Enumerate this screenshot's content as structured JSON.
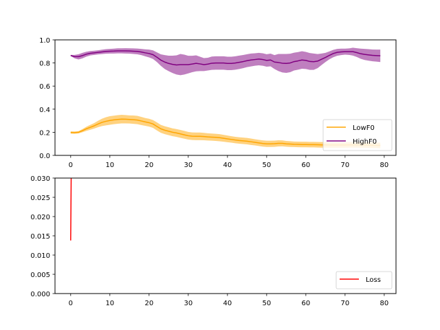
{
  "chart_data": [
    {
      "type": "line",
      "xlim": [
        -4,
        83
      ],
      "ylim": [
        0,
        1
      ],
      "xticks": [
        0,
        10,
        20,
        30,
        40,
        50,
        60,
        70,
        80
      ],
      "xtick_labels": [
        "0",
        "10",
        "20",
        "30",
        "40",
        "50",
        "60",
        "70",
        "80"
      ],
      "yticks": [
        0.0,
        0.2,
        0.4,
        0.6,
        0.8,
        1.0
      ],
      "ytick_labels": [
        "0.0",
        "0.2",
        "0.4",
        "0.6",
        "0.8",
        "1.0"
      ],
      "legend_position": "lower-right",
      "series": [
        {
          "name": "LowF0",
          "color": "#ffa500",
          "band_opacity": 0.5,
          "x": [
            0,
            1,
            2,
            3,
            4,
            5,
            6,
            7,
            8,
            9,
            10,
            11,
            12,
            13,
            14,
            15,
            16,
            17,
            18,
            19,
            20,
            21,
            22,
            23,
            24,
            25,
            26,
            27,
            28,
            29,
            30,
            31,
            32,
            33,
            34,
            35,
            36,
            37,
            38,
            39,
            40,
            41,
            42,
            43,
            44,
            45,
            46,
            47,
            48,
            49,
            50,
            51,
            52,
            53,
            54,
            55,
            56,
            57,
            58,
            59,
            60,
            61,
            62,
            63,
            64,
            65,
            66,
            67,
            68,
            69,
            70,
            71,
            72,
            73,
            74,
            75,
            76,
            77,
            78,
            79
          ],
          "values": [
            0.198,
            0.197,
            0.2,
            0.214,
            0.23,
            0.243,
            0.256,
            0.272,
            0.286,
            0.295,
            0.302,
            0.307,
            0.311,
            0.314,
            0.313,
            0.311,
            0.309,
            0.306,
            0.298,
            0.29,
            0.283,
            0.272,
            0.251,
            0.23,
            0.218,
            0.209,
            0.2,
            0.194,
            0.186,
            0.178,
            0.17,
            0.166,
            0.165,
            0.165,
            0.163,
            0.16,
            0.158,
            0.156,
            0.153,
            0.148,
            0.143,
            0.138,
            0.133,
            0.129,
            0.126,
            0.123,
            0.118,
            0.113,
            0.108,
            0.103,
            0.1,
            0.1,
            0.101,
            0.104,
            0.104,
            0.1,
            0.098,
            0.096,
            0.095,
            0.094,
            0.094,
            0.093,
            0.093,
            0.092,
            0.091,
            0.091,
            0.09,
            0.09,
            0.09,
            0.09,
            0.09,
            0.091,
            0.091,
            0.091,
            0.09,
            0.09,
            0.089,
            0.088,
            0.087,
            0.086
          ],
          "lower": [
            0.188,
            0.187,
            0.19,
            0.2,
            0.212,
            0.222,
            0.232,
            0.244,
            0.254,
            0.26,
            0.265,
            0.27,
            0.274,
            0.277,
            0.277,
            0.276,
            0.273,
            0.27,
            0.263,
            0.256,
            0.249,
            0.238,
            0.216,
            0.196,
            0.184,
            0.175,
            0.166,
            0.16,
            0.152,
            0.144,
            0.137,
            0.133,
            0.132,
            0.132,
            0.131,
            0.129,
            0.127,
            0.125,
            0.122,
            0.118,
            0.114,
            0.11,
            0.105,
            0.101,
            0.098,
            0.095,
            0.09,
            0.086,
            0.081,
            0.076,
            0.073,
            0.073,
            0.074,
            0.077,
            0.078,
            0.075,
            0.073,
            0.072,
            0.071,
            0.07,
            0.07,
            0.069,
            0.069,
            0.068,
            0.067,
            0.067,
            0.066,
            0.066,
            0.066,
            0.066,
            0.066,
            0.067,
            0.067,
            0.067,
            0.066,
            0.066,
            0.065,
            0.064,
            0.063,
            0.062
          ],
          "upper": [
            0.208,
            0.207,
            0.21,
            0.228,
            0.248,
            0.264,
            0.28,
            0.3,
            0.318,
            0.33,
            0.339,
            0.344,
            0.348,
            0.351,
            0.349,
            0.346,
            0.345,
            0.342,
            0.333,
            0.324,
            0.317,
            0.306,
            0.286,
            0.264,
            0.252,
            0.243,
            0.234,
            0.228,
            0.22,
            0.212,
            0.203,
            0.199,
            0.198,
            0.198,
            0.195,
            0.191,
            0.189,
            0.187,
            0.184,
            0.178,
            0.172,
            0.166,
            0.161,
            0.157,
            0.154,
            0.151,
            0.146,
            0.14,
            0.135,
            0.13,
            0.127,
            0.127,
            0.128,
            0.131,
            0.13,
            0.125,
            0.123,
            0.12,
            0.119,
            0.118,
            0.118,
            0.117,
            0.117,
            0.116,
            0.115,
            0.115,
            0.114,
            0.114,
            0.114,
            0.114,
            0.114,
            0.115,
            0.115,
            0.115,
            0.114,
            0.114,
            0.113,
            0.112,
            0.111,
            0.11
          ]
        },
        {
          "name": "HighF0",
          "color": "#800080",
          "band_opacity": 0.5,
          "x": [
            0,
            1,
            2,
            3,
            4,
            5,
            6,
            7,
            8,
            9,
            10,
            11,
            12,
            13,
            14,
            15,
            16,
            17,
            18,
            19,
            20,
            21,
            22,
            23,
            24,
            25,
            26,
            27,
            28,
            29,
            30,
            31,
            32,
            33,
            34,
            35,
            36,
            37,
            38,
            39,
            40,
            41,
            42,
            43,
            44,
            45,
            46,
            47,
            48,
            49,
            50,
            51,
            52,
            53,
            54,
            55,
            56,
            57,
            58,
            59,
            60,
            61,
            62,
            63,
            64,
            65,
            66,
            67,
            68,
            69,
            70,
            71,
            72,
            73,
            74,
            75,
            76,
            77,
            78,
            79
          ],
          "values": [
            0.865,
            0.855,
            0.855,
            0.864,
            0.876,
            0.884,
            0.888,
            0.892,
            0.896,
            0.9,
            0.902,
            0.903,
            0.905,
            0.905,
            0.905,
            0.904,
            0.902,
            0.9,
            0.895,
            0.888,
            0.882,
            0.872,
            0.85,
            0.825,
            0.808,
            0.796,
            0.788,
            0.783,
            0.786,
            0.786,
            0.786,
            0.791,
            0.797,
            0.792,
            0.786,
            0.79,
            0.798,
            0.8,
            0.8,
            0.8,
            0.796,
            0.796,
            0.8,
            0.806,
            0.812,
            0.82,
            0.826,
            0.83,
            0.834,
            0.83,
            0.822,
            0.826,
            0.808,
            0.804,
            0.798,
            0.796,
            0.8,
            0.812,
            0.818,
            0.826,
            0.822,
            0.813,
            0.811,
            0.816,
            0.832,
            0.848,
            0.866,
            0.882,
            0.892,
            0.896,
            0.898,
            0.898,
            0.898,
            0.89,
            0.88,
            0.874,
            0.87,
            0.866,
            0.864,
            0.862
          ],
          "lower": [
            0.86,
            0.84,
            0.83,
            0.84,
            0.855,
            0.865,
            0.87,
            0.874,
            0.877,
            0.88,
            0.882,
            0.882,
            0.883,
            0.883,
            0.882,
            0.881,
            0.878,
            0.875,
            0.868,
            0.858,
            0.848,
            0.835,
            0.808,
            0.775,
            0.748,
            0.729,
            0.713,
            0.7,
            0.694,
            0.7,
            0.71,
            0.72,
            0.728,
            0.73,
            0.73,
            0.735,
            0.74,
            0.742,
            0.742,
            0.742,
            0.738,
            0.738,
            0.742,
            0.748,
            0.755,
            0.764,
            0.77,
            0.776,
            0.78,
            0.776,
            0.768,
            0.771,
            0.748,
            0.73,
            0.718,
            0.714,
            0.72,
            0.735,
            0.742,
            0.75,
            0.748,
            0.74,
            0.74,
            0.755,
            0.782,
            0.808,
            0.832,
            0.85,
            0.862,
            0.868,
            0.872,
            0.87,
            0.864,
            0.852,
            0.836,
            0.826,
            0.82,
            0.815,
            0.812,
            0.808
          ],
          "upper": [
            0.87,
            0.87,
            0.876,
            0.888,
            0.897,
            0.903,
            0.906,
            0.91,
            0.915,
            0.92,
            0.922,
            0.924,
            0.927,
            0.927,
            0.928,
            0.927,
            0.926,
            0.925,
            0.922,
            0.918,
            0.916,
            0.909,
            0.892,
            0.875,
            0.868,
            0.863,
            0.863,
            0.866,
            0.878,
            0.872,
            0.862,
            0.862,
            0.866,
            0.854,
            0.842,
            0.845,
            0.856,
            0.858,
            0.858,
            0.858,
            0.854,
            0.854,
            0.858,
            0.864,
            0.869,
            0.876,
            0.882,
            0.884,
            0.888,
            0.884,
            0.876,
            0.881,
            0.868,
            0.878,
            0.878,
            0.878,
            0.88,
            0.889,
            0.894,
            0.902,
            0.896,
            0.886,
            0.882,
            0.877,
            0.882,
            0.888,
            0.9,
            0.914,
            0.922,
            0.924,
            0.924,
            0.926,
            0.932,
            0.928,
            0.924,
            0.922,
            0.92,
            0.917,
            0.916,
            0.916
          ]
        }
      ]
    },
    {
      "type": "line",
      "xlim": [
        -4,
        83
      ],
      "ylim": [
        0,
        0.03
      ],
      "xticks": [
        0,
        10,
        20,
        30,
        40,
        50,
        60,
        70,
        80
      ],
      "xtick_labels": [
        "0",
        "10",
        "20",
        "30",
        "40",
        "50",
        "60",
        "70",
        "80"
      ],
      "yticks": [
        0.0,
        0.005,
        0.01,
        0.015,
        0.02,
        0.025,
        0.03
      ],
      "ytick_labels": [
        "0.000",
        "0.005",
        "0.010",
        "0.015",
        "0.020",
        "0.025",
        "0.030"
      ],
      "legend_position": "lower-right",
      "series": [
        {
          "name": "Loss",
          "color": "#ff0000",
          "band_opacity": 0.3,
          "x": [
            0,
            0.02,
            0.05,
            0.08,
            0.11,
            0.14
          ],
          "values": [
            0.0138,
            0.016,
            0.02,
            0.024,
            0.028,
            0.032
          ],
          "lower": [
            0.0132,
            0.0154,
            0.0194,
            0.0234,
            0.0274,
            0.0314
          ],
          "upper": [
            0.0144,
            0.0166,
            0.0206,
            0.0246,
            0.0286,
            0.0326
          ]
        }
      ]
    }
  ]
}
